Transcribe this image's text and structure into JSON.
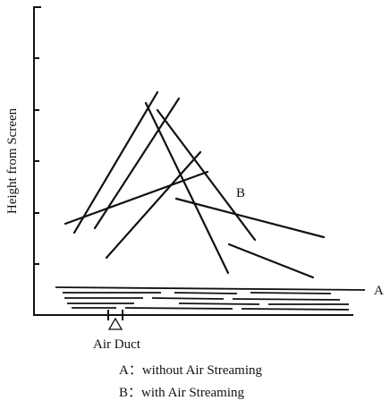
{
  "axis_label": "Height from Screen",
  "labels": {
    "a": "A",
    "b": "B",
    "duct": "Air Duct"
  },
  "legend": [
    "A：without Air Streaming",
    "B：with Air Streaming"
  ]
}
